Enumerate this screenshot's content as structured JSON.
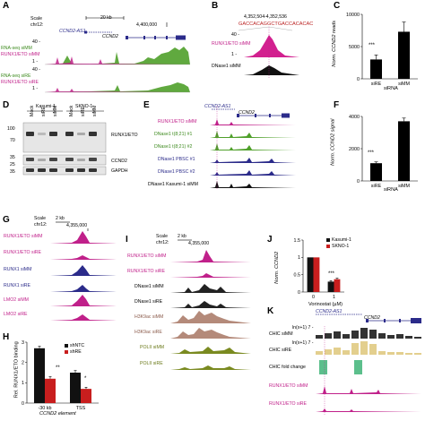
{
  "panels": {
    "A": {
      "letter": "A",
      "scale": "Scale",
      "chr": "chr12:",
      "bar": "20 kb",
      "coord": "4,400,000",
      "gene1": "CCND2-AS1",
      "gene2": "CCND2",
      "tracks": [
        {
          "top": "40 -",
          "bottom": "1 -",
          "label1": "RNA-seq siMM",
          "label2": "RUNX1/ETO siMM"
        },
        {
          "top": "40 -",
          "bottom": "1 -",
          "label1": "RNA-seq siRE",
          "label2": "RUNX1/ETO siRE"
        }
      ]
    },
    "B": {
      "letter": "B",
      "coord": "4,352,504-4,352,536",
      "sequence": "GACCACAGGCTGACCACACAC",
      "track1": "RUNX1/ETO siMM",
      "track2": "DNase1 siMM",
      "top": "40 -",
      "bottom": "1 -"
    },
    "C": {
      "letter": "C",
      "ylabel": "Norm. CCND2 reads",
      "xlabel": "siRNA",
      "sig": "***"
    },
    "D": {
      "letter": "D",
      "lines": [
        "Kasumi-1",
        "SKNO-1"
      ],
      "lanes": [
        "Mock",
        "siRE",
        "siMM",
        "Mock",
        "siRE",
        "siMM"
      ],
      "markers": [
        "100",
        "70",
        "35",
        "25",
        "35"
      ],
      "bands": [
        "RUNX1/ETO",
        "CCND2",
        "GAPDH"
      ]
    },
    "E": {
      "letter": "E",
      "gene1": "CCND2-AS1",
      "gene2": "CCND2",
      "tracks": [
        "RUNX1/ETO siMM",
        "DNase1 t(8;21) #1",
        "DNase1 t(8;21) #2",
        "DNase1 PBSC #1",
        "DNase1 PBSC #2",
        "DNase1 Kasumi-1 siMM"
      ]
    },
    "F": {
      "letter": "F",
      "ylabel": "Norm. CCND2 signal",
      "xlabel": "siRNA",
      "sig": "***"
    },
    "G": {
      "letter": "G",
      "scale": "Scale",
      "chr": "chr12:",
      "bar": "2 kb",
      "coord": "4,355,000",
      "tracks": [
        "RUNX1/ETO siMM",
        "RUNX1/ETO siRE",
        "RUNX1 siMM",
        "RUNX1 siRE",
        "LMO2 siMM",
        "LMO2 siRE"
      ]
    },
    "H": {
      "letter": "H",
      "ylabel": "Rel. RUNX1/ETO binding",
      "legend": [
        "shNTC",
        "shRE"
      ],
      "xlabel": "CCND2 element",
      "sig1": "**",
      "sig2": "*"
    },
    "I": {
      "letter": "I",
      "scale": "Scale",
      "chr": "chr12:",
      "bar": "2 kb",
      "coord": "4,355,000",
      "tracks": [
        "RUNX1/ETO siMM",
        "RUNX1/ETO siRE",
        "DNase1 siMM",
        "DNase1 siRE",
        "H3K9ac siMM",
        "H3K9ac siRE",
        "POLII siMM",
        "POLII siRE"
      ]
    },
    "J": {
      "letter": "J",
      "ylabel": "Norm. CCND2",
      "xlabel": "Vorinostat (µM)",
      "legend": [
        "Kasumi-1",
        "SKNO-1"
      ],
      "sig": "***"
    },
    "K": {
      "letter": "K",
      "gene1": "CCND2-AS1",
      "gene2": "CCND2",
      "ylab": "ln(x+1) 7 -",
      "tracks": [
        "CHIC siMM",
        "CHIC siRE",
        "CHIC fold change",
        "RUNX1/ETO siMM",
        "RUNX1/ETO siRE"
      ]
    }
  },
  "chart_data": [
    {
      "type": "bar",
      "panel": "C",
      "categories": [
        "siRE",
        "siMM"
      ],
      "values": [
        3000,
        7300
      ],
      "errors": [
        700,
        1500
      ],
      "ylabel": "Norm. CCND2 reads",
      "xlabel": "siRNA",
      "ylim": [
        0,
        10000
      ],
      "yticks": [
        0,
        5000,
        10000
      ]
    },
    {
      "type": "bar",
      "panel": "F",
      "categories": [
        "siRE",
        "siMM"
      ],
      "values": [
        1100,
        3700
      ],
      "errors": [
        80,
        200
      ],
      "ylabel": "Norm. CCND2 signal",
      "xlabel": "siRNA",
      "ylim": [
        0,
        4000
      ],
      "yticks": [
        0,
        2000,
        4000
      ]
    },
    {
      "type": "bar",
      "panel": "H",
      "categories": [
        "-30 kb",
        "TSS"
      ],
      "series": [
        {
          "name": "shNTC",
          "values": [
            2.7,
            1.5
          ],
          "errors": [
            0.1,
            0.1
          ],
          "color": "#111111"
        },
        {
          "name": "shRE",
          "values": [
            1.2,
            0.7
          ],
          "errors": [
            0.1,
            0.08
          ],
          "color": "#c81e1e"
        }
      ],
      "ylabel": "Rel. RUNX1/ETO binding",
      "xlabel": "CCND2 element",
      "ylim": [
        0,
        3
      ],
      "yticks": [
        0,
        1,
        2,
        3
      ]
    },
    {
      "type": "bar",
      "panel": "J",
      "categories": [
        "0",
        "1"
      ],
      "series": [
        {
          "name": "Kasumi-1",
          "values": [
            1.0,
            0.3
          ],
          "errors": [
            0,
            0.03
          ],
          "color": "#111111"
        },
        {
          "name": "SKNO-1",
          "values": [
            1.0,
            0.37
          ],
          "errors": [
            0,
            0.03
          ],
          "color": "#c81e1e"
        }
      ],
      "ylabel": "Norm. CCND2",
      "xlabel": "Vorinostat (µM)",
      "ylim": [
        0,
        1.5
      ],
      "yticks": [
        0,
        0.5,
        1,
        1.5
      ]
    }
  ]
}
